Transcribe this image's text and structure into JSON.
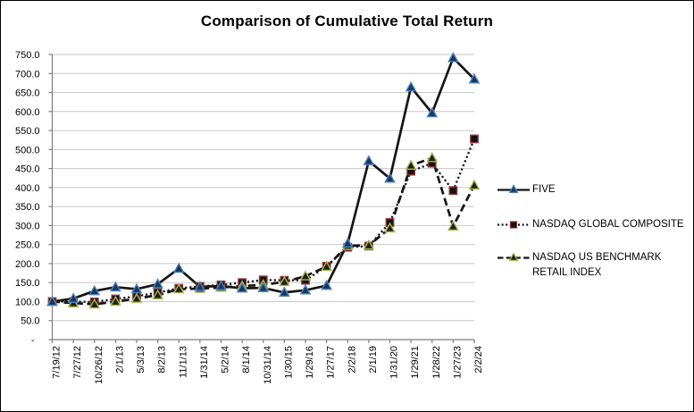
{
  "title": "Comparison of Cumulative Total Return",
  "chart_data": {
    "type": "line",
    "title": "Comparison of Cumulative Total Return",
    "categories": [
      "7/19/12",
      "7/27/12",
      "10/26/12",
      "2/1/13",
      "5/3/13",
      "8/2/13",
      "11/1/13",
      "1/31/14",
      "5/2/14",
      "8/1/14",
      "10/31/14",
      "1/30/15",
      "1/29/16",
      "1/27/17",
      "2/2/18",
      "2/1/19",
      "1/31/20",
      "1/29/21",
      "1/28/22",
      "1/27/23",
      "2/2/24"
    ],
    "series": [
      {
        "name": "NASDAQ GLOBAL COMPOSITE",
        "line_style": "dotted",
        "marker": "square",
        "line_color": "#151515",
        "marker_fill": "#121212",
        "marker_stroke": "#8f3836",
        "values": [
          100,
          100,
          99,
          107,
          114,
          124,
          135,
          140,
          144,
          150,
          157,
          156,
          156,
          193,
          243,
          246,
          308,
          443,
          464,
          392,
          528
        ]
      },
      {
        "name": "NASDAQ US BENCHMARK RETAIL INDEX",
        "line_style": "dashed",
        "marker": "triangle",
        "line_color": "#151515",
        "marker_fill": "#1e2213",
        "marker_stroke": "#a6b954",
        "values": [
          100,
          96,
          93,
          100,
          108,
          117,
          133,
          134,
          137,
          141,
          144,
          152,
          167,
          192,
          247,
          248,
          293,
          458,
          478,
          298,
          406
        ]
      },
      {
        "name": "FIVE",
        "line_style": "solid",
        "marker": "triangle",
        "line_color": "#151515",
        "marker_fill": "#17375e",
        "marker_stroke": "#4f81bd",
        "values": [
          100,
          108,
          128,
          138,
          133,
          146,
          187,
          139,
          141,
          135,
          136,
          124,
          130,
          142,
          253,
          470,
          424,
          664,
          596,
          741,
          685
        ]
      }
    ],
    "ylim": [
      0,
      750
    ],
    "y_ticks": [
      {
        "label": "750.0",
        "value": 750
      },
      {
        "label": "700.0",
        "value": 700
      },
      {
        "label": "650.0",
        "value": 650
      },
      {
        "label": "600.0",
        "value": 600
      },
      {
        "label": "550.0",
        "value": 550
      },
      {
        "label": "500.0",
        "value": 500
      },
      {
        "label": "450.0",
        "value": 450
      },
      {
        "label": "400.0",
        "value": 400
      },
      {
        "label": "350.0",
        "value": 350
      },
      {
        "label": "300.0",
        "value": 300
      },
      {
        "label": "250.0",
        "value": 250
      },
      {
        "label": "200.0",
        "value": 200
      },
      {
        "label": "150.0",
        "value": 150
      },
      {
        "label": "100.0",
        "value": 100
      },
      {
        "label": "50.0",
        "value": 50
      },
      {
        "label": "-",
        "value": 0
      }
    ],
    "grid": true,
    "legend_position": "right",
    "colors": {
      "grid": "#c8c8c8",
      "axis": "#7f7f7f",
      "text": "#000000"
    }
  },
  "legend": {
    "items": [
      {
        "label": "FIVE"
      },
      {
        "label": "NASDAQ GLOBAL COMPOSITE"
      },
      {
        "label": "NASDAQ US BENCHMARK RETAIL INDEX"
      }
    ]
  }
}
